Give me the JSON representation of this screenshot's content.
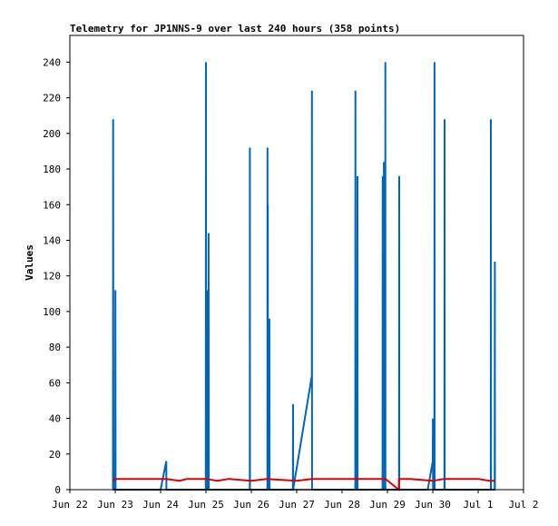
{
  "chart_data": {
    "type": "line",
    "title": "Telemetry for JP1NNS-9 over last 240 hours (358 points)",
    "xlabel": "",
    "ylabel": "Values",
    "ylim": [
      0,
      255
    ],
    "xlim": [
      "Jun 22 00:00",
      "Jul 2 00:00"
    ],
    "grid": false,
    "legend": "none",
    "x_ticks": [
      "Jun 22",
      "Jun 23",
      "Jun 24",
      "Jun 25",
      "Jun 26",
      "Jun 27",
      "Jun 28",
      "Jun 29",
      "Jun 30",
      "Jul 1",
      "Jul 2"
    ],
    "y_ticks": [
      0,
      20,
      40,
      60,
      80,
      100,
      120,
      140,
      160,
      180,
      200,
      220,
      240
    ],
    "series": [
      {
        "color": "#0066bb",
        "points": [
          [
            "Jun 22 22:48",
            0
          ],
          [
            "Jun 22 22:55",
            208
          ],
          [
            "Jun 22 23:02",
            0
          ],
          [
            "Jun 23 00:00",
            0
          ],
          [
            "Jun 23 00:06",
            112
          ],
          [
            "Jun 23 00:12",
            0
          ],
          [
            "Jun 24 00:00",
            0
          ],
          [
            "Jun 24 03:00",
            16
          ],
          [
            "Jun 24 03:05",
            0
          ],
          [
            "Jun 24 23:55",
            0
          ],
          [
            "Jun 24 23:59",
            240
          ],
          [
            "Jun 25 00:03",
            0
          ],
          [
            "Jun 25 00:08",
            56
          ],
          [
            "Jun 25 00:12",
            0
          ],
          [
            "Jun 25 00:30",
            0
          ],
          [
            "Jun 25 00:34",
            112
          ],
          [
            "Jun 25 00:38",
            0
          ],
          [
            "Jun 25 01:20",
            0
          ],
          [
            "Jun 25 01:24",
            144
          ],
          [
            "Jun 25 01:28",
            0
          ],
          [
            "Jun 25 23:10",
            0
          ],
          [
            "Jun 25 23:14",
            192
          ],
          [
            "Jun 25 23:18",
            0
          ],
          [
            "Jun 26 08:30",
            0
          ],
          [
            "Jun 26 08:34",
            192
          ],
          [
            "Jun 26 08:38",
            0
          ],
          [
            "Jun 26 08:44",
            160
          ],
          [
            "Jun 26 08:48",
            0
          ],
          [
            "Jun 26 09:30",
            0
          ],
          [
            "Jun 26 09:34",
            96
          ],
          [
            "Jun 26 09:38",
            0
          ],
          [
            "Jun 26 22:00",
            0
          ],
          [
            "Jun 26 22:04",
            48
          ],
          [
            "Jun 26 22:08",
            0
          ],
          [
            "Jun 27 08:00",
            64
          ],
          [
            "Jun 27 08:04",
            224
          ],
          [
            "Jun 27 08:08",
            0
          ],
          [
            "Jun 28 07:00",
            0
          ],
          [
            "Jun 28 07:04",
            224
          ],
          [
            "Jun 28 07:08",
            0
          ],
          [
            "Jun 28 08:05",
            0
          ],
          [
            "Jun 28 08:09",
            176
          ],
          [
            "Jun 28 08:13",
            0
          ],
          [
            "Jun 28 21:25",
            0
          ],
          [
            "Jun 28 21:29",
            176
          ],
          [
            "Jun 28 21:33",
            0
          ],
          [
            "Jun 28 22:05",
            0
          ],
          [
            "Jun 28 22:09",
            184
          ],
          [
            "Jun 28 22:13",
            0
          ],
          [
            "Jun 28 22:50",
            0
          ],
          [
            "Jun 28 22:54",
            240
          ],
          [
            "Jun 28 22:58",
            0
          ],
          [
            "Jun 29 06:10",
            0
          ],
          [
            "Jun 29 06:14",
            176
          ],
          [
            "Jun 29 06:18",
            0
          ],
          [
            "Jun 29 21:20",
            0
          ],
          [
            "Jun 30 00:00",
            16
          ],
          [
            "Jun 30 00:04",
            40
          ],
          [
            "Jun 30 00:08",
            0
          ],
          [
            "Jun 30 00:50",
            0
          ],
          [
            "Jun 30 00:54",
            240
          ],
          [
            "Jun 30 00:58",
            0
          ],
          [
            "Jun 30 06:10",
            0
          ],
          [
            "Jun 30 06:14",
            208
          ],
          [
            "Jun 30 06:18",
            0
          ],
          [
            "Jul 1 06:40",
            0
          ],
          [
            "Jul 1 06:44",
            208
          ],
          [
            "Jul 1 06:48",
            0
          ],
          [
            "Jul 1 08:45",
            0
          ],
          [
            "Jul 1 08:49",
            128
          ],
          [
            "Jul 1 08:53",
            0
          ]
        ]
      },
      {
        "color": "#dd0000",
        "points": [
          [
            "Jun 22 22:48",
            5
          ],
          [
            "Jun 23 00:00",
            6
          ],
          [
            "Jun 23 12:00",
            6
          ],
          [
            "Jun 24 03:00",
            6
          ],
          [
            "Jun 24 10:00",
            5
          ],
          [
            "Jun 24 14:00",
            6
          ],
          [
            "Jun 25 00:00",
            6
          ],
          [
            "Jun 25 06:00",
            5
          ],
          [
            "Jun 25 12:00",
            6
          ],
          [
            "Jun 26 00:00",
            5
          ],
          [
            "Jun 26 08:00",
            6
          ],
          [
            "Jun 27 00:00",
            5
          ],
          [
            "Jun 27 08:00",
            6
          ],
          [
            "Jun 28 00:00",
            6
          ],
          [
            "Jun 28 23:00",
            6
          ],
          [
            "Jun 29 06:00",
            0
          ],
          [
            "Jun 29 06:10",
            6
          ],
          [
            "Jun 29 12:00",
            6
          ],
          [
            "Jun 30 00:00",
            5
          ],
          [
            "Jun 30 06:00",
            6
          ],
          [
            "Jul 1 00:00",
            6
          ],
          [
            "Jul 1 06:00",
            5
          ],
          [
            "Jul 1 08:53",
            5
          ]
        ]
      },
      {
        "color": "#000000",
        "points": [
          [
            "Jun 22 22:48",
            0
          ],
          [
            "Jul 1 08:53",
            0
          ]
        ]
      }
    ]
  }
}
